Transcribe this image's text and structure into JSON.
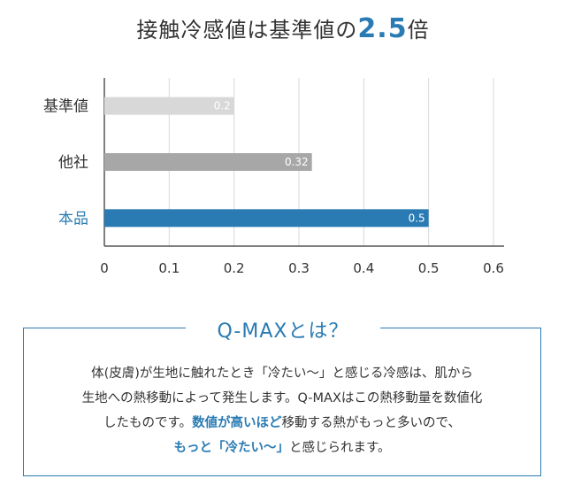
{
  "title": {
    "prefix": "接触冷感値は基準値の",
    "highlight": "2.5",
    "suffix": "倍"
  },
  "colors": {
    "accent": "#2a7bb3",
    "bar_base": "#d8d8d8",
    "bar_other": "#a7a7a7",
    "bar_product": "#2a7bb3"
  },
  "chart_data": {
    "type": "bar",
    "orientation": "horizontal",
    "categories": [
      "基準値",
      "他社",
      "本品"
    ],
    "values": [
      0.2,
      0.32,
      0.5
    ],
    "value_labels": [
      "0.2",
      "0.32",
      "0.5"
    ],
    "bar_colors": [
      "#d8d8d8",
      "#a7a7a7",
      "#2a7bb3"
    ],
    "label_colors": [
      "#333333",
      "#333333",
      "#2a7bb3"
    ],
    "xlim": [
      0,
      0.6
    ],
    "xticks": [
      "0",
      "0.1",
      "0.2",
      "0.3",
      "0.4",
      "0.5",
      "0.6"
    ],
    "grid": true
  },
  "qmax": {
    "heading": "Q-MAXとは？",
    "line1": "体(皮膚)が生地に触れたとき「冷たい～」と感じる冷感は、肌から",
    "line2": "生地への熱移動によって発生します。Q-MAXはこの熱移動量を数値化",
    "line3_prefix": "したものです。",
    "line3_em": "数値が高いほど",
    "line3_suffix": "移動する熱がもっと多いので、",
    "line4_em": "もっと「冷たい～」",
    "line4_suffix": "と感じられます。"
  }
}
